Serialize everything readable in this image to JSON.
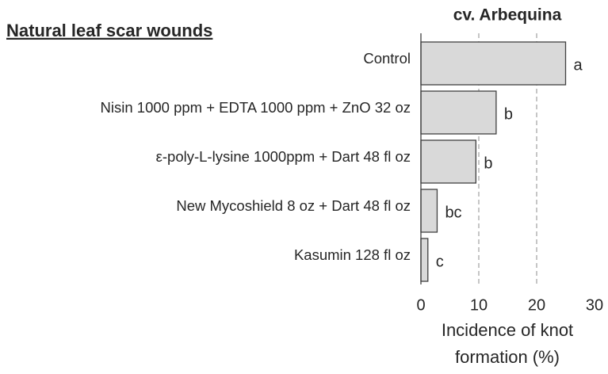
{
  "chart_data": {
    "type": "bar",
    "orientation": "horizontal",
    "title": "cv. Arbequina",
    "subtitle": "Natural leaf scar wounds",
    "xlabel": "Incidence of knot formation (%)",
    "categories": [
      "Control",
      "Nisin 1000 ppm + EDTA 1000 ppm + ZnO 32 oz",
      "ε-poly-L-lysine 1000ppm + Dart 48 fl oz",
      "New Mycoshield 8 oz + Dart 48 fl oz",
      "Kasumin 128 fl oz"
    ],
    "values": [
      25,
      13,
      9.5,
      2.8,
      1.2
    ],
    "letters": [
      "a",
      "b",
      "b",
      "bc",
      "c"
    ],
    "color": "#d9d9d9",
    "xlim": [
      0,
      30
    ],
    "xticks": [
      0,
      10,
      20,
      30
    ],
    "grid": true
  }
}
